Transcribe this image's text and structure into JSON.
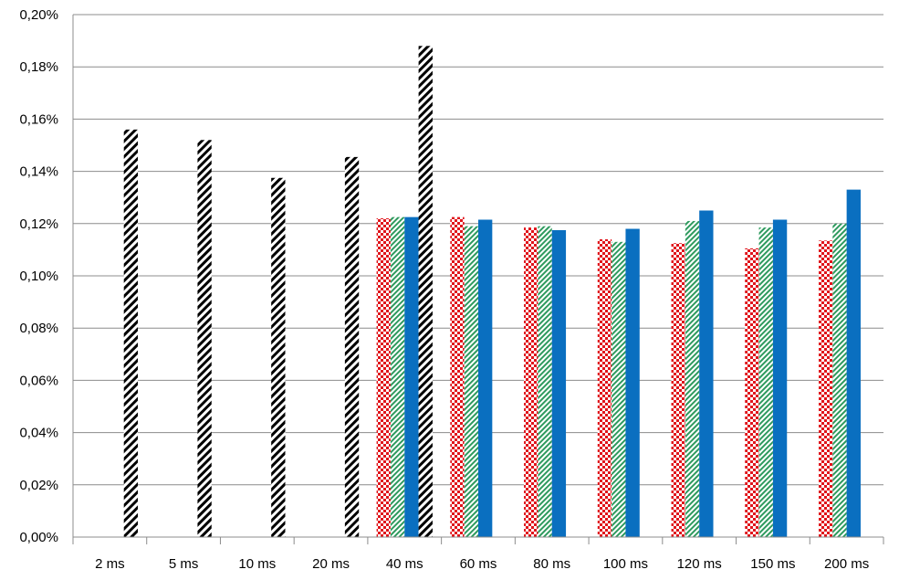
{
  "chart_data": {
    "type": "bar",
    "title": "",
    "xlabel": "",
    "ylabel": "",
    "ylim": [
      0,
      0.2
    ],
    "y_ticks": [
      "0,00%",
      "0,02%",
      "0,04%",
      "0,06%",
      "0,08%",
      "0,10%",
      "0,12%",
      "0,14%",
      "0,16%",
      "0,18%",
      "0,20%"
    ],
    "grid": true,
    "legend": "none",
    "categories": [
      "2 ms",
      "5 ms",
      "10 ms",
      "20 ms",
      "40 ms",
      "60 ms",
      "80 ms",
      "100 ms",
      "120 ms",
      "150 ms",
      "200 ms"
    ],
    "series": [
      {
        "pattern": "red-checker",
        "color": "#e0141b",
        "values": [
          null,
          null,
          null,
          null,
          0.122,
          0.1225,
          0.1185,
          0.114,
          0.1125,
          0.1105,
          0.1135
        ]
      },
      {
        "pattern": "green-diagonal",
        "color": "#2e9a5e",
        "values": [
          null,
          null,
          null,
          null,
          0.1225,
          0.119,
          0.119,
          0.113,
          0.121,
          0.1185,
          0.12
        ]
      },
      {
        "pattern": "blue-solid",
        "color": "#0a6fc0",
        "values": [
          null,
          null,
          null,
          null,
          0.1225,
          0.1215,
          0.1175,
          0.118,
          0.125,
          0.1215,
          0.133
        ]
      },
      {
        "pattern": "black-diagonal",
        "color": "#000000",
        "values": [
          0.156,
          0.152,
          0.1375,
          0.1455,
          0.188,
          null,
          null,
          null,
          null,
          null,
          null
        ]
      }
    ]
  }
}
